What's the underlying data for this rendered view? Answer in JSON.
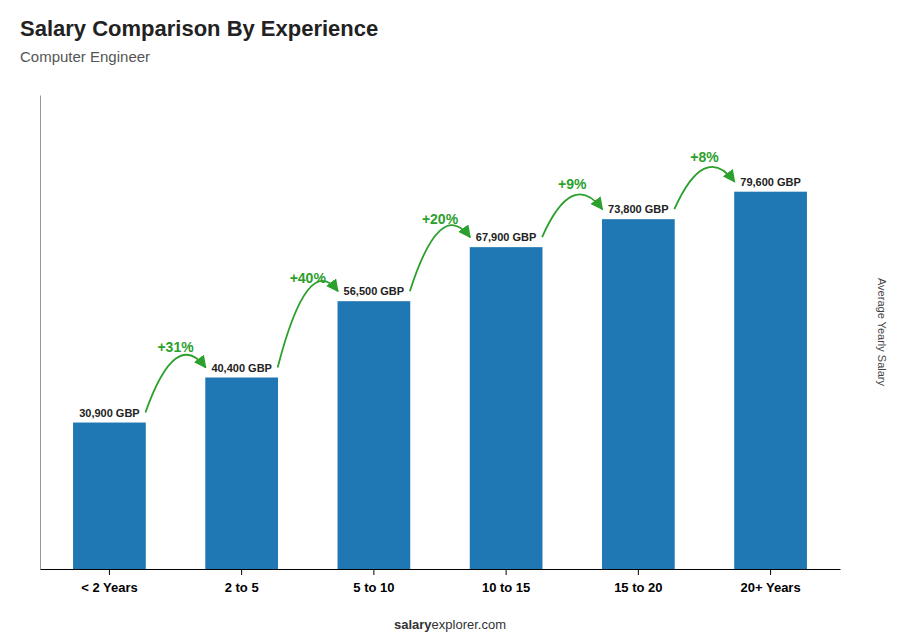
{
  "chart_data": {
    "type": "bar",
    "title": "Salary Comparison By Experience",
    "subtitle": "Computer Engineer",
    "ylabel": "Average Yearly Salary",
    "categories": [
      "< 2 Years",
      "2 to 5",
      "5 to 10",
      "10 to 15",
      "15 to 20",
      "20+ Years"
    ],
    "values": [
      30900,
      40400,
      56500,
      67900,
      73800,
      79600
    ],
    "value_labels": [
      "30,900 GBP",
      "40,400 GBP",
      "56,500 GBP",
      "67,900 GBP",
      "73,800 GBP",
      "79,600 GBP"
    ],
    "data_labels": true,
    "annotations": [
      "+31%",
      "+40%",
      "+20%",
      "+9%",
      "+8%"
    ],
    "footer": [
      "salary",
      "explorer.com"
    ],
    "ylim": [
      0,
      100000
    ],
    "tick_labels": "x"
  }
}
